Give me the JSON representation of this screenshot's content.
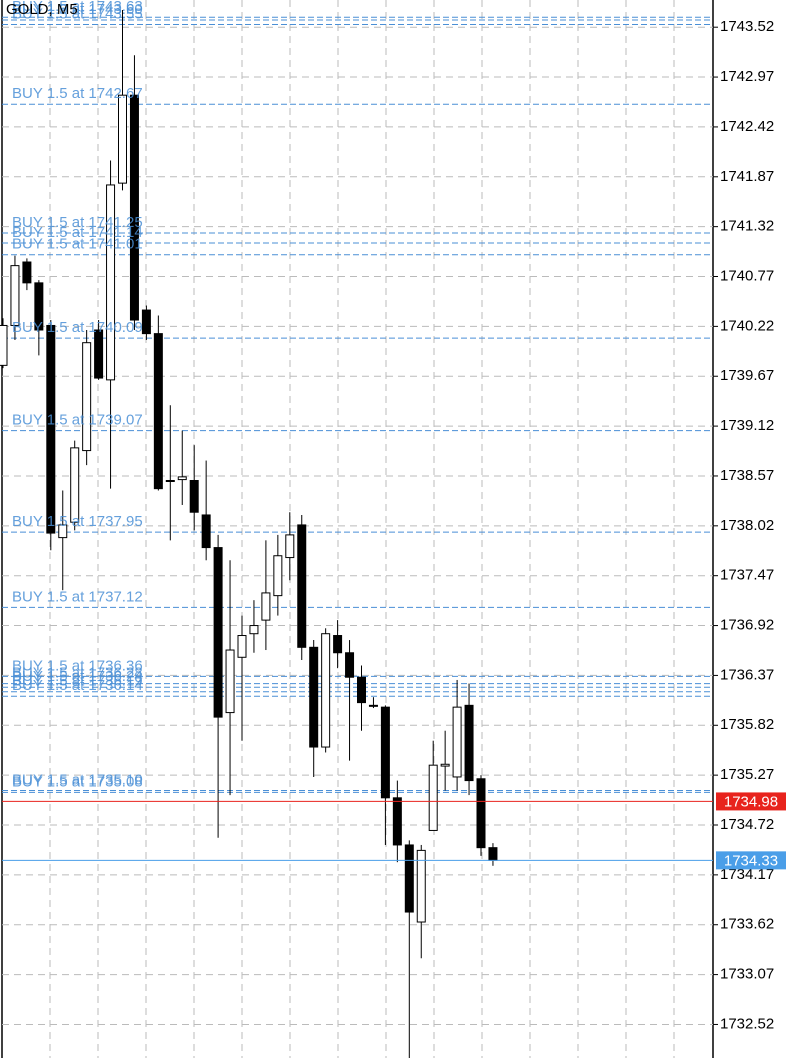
{
  "chart_data": {
    "type": "candlestick",
    "title": "GOLD, M5",
    "open": [
      1739.79,
      1740.23,
      1740.93,
      1740.7,
      1740.23,
      1737.89,
      1738.06,
      1738.85,
      1740.18,
      1739.63,
      1741.8,
      1742.77,
      1740.4,
      1740.14,
      1738.51,
      1738.53,
      1738.52,
      1738.14,
      1737.78,
      1735.96,
      1736.57,
      1736.83,
      1736.98,
      1737.25,
      1737.67,
      1738.03,
      1736.68,
      1735.58,
      1736.81,
      1736.62,
      1736.35,
      1736.04,
      1736.02,
      1735.02,
      1734.5,
      1733.65,
      1734.66,
      1735.37,
      1735.25,
      1736.04,
      1735.23,
      1734.47
    ],
    "high": [
      1740.31,
      1741.0,
      1740.97,
      1740.73,
      1740.29,
      1738.41,
      1738.96,
      1740.18,
      1740.29,
      1742.05,
      1743.71,
      1743.21,
      1740.45,
      1740.34,
      1739.35,
      1739.07,
      1738.91,
      1738.74,
      1737.92,
      1737.64,
      1737.03,
      1737.2,
      1737.86,
      1737.92,
      1738.17,
      1738.14,
      1736.76,
      1736.89,
      1736.98,
      1736.76,
      1736.48,
      1736.13,
      1736.04,
      1735.21,
      1734.55,
      1734.5,
      1735.65,
      1735.76,
      1736.32,
      1736.28,
      1735.27,
      1734.52
    ],
    "low": [
      1739.76,
      1740.07,
      1740.62,
      1739.9,
      1737.75,
      1737.31,
      1737.97,
      1738.69,
      1739.63,
      1738.43,
      1741.72,
      1740.18,
      1740.07,
      1738.41,
      1737.86,
      1738.25,
      1737.97,
      1737.64,
      1734.58,
      1735.05,
      1735.65,
      1736.62,
      1736.65,
      1737.03,
      1737.42,
      1736.54,
      1735.25,
      1735.52,
      1736.45,
      1735.43,
      1735.76,
      1736.01,
      1734.5,
      1734.31,
      1732.15,
      1733.25,
      1734.66,
      1735.1,
      1735.1,
      1735.05,
      1734.38,
      1734.27
    ],
    "close": [
      1740.23,
      1740.89,
      1740.7,
      1740.18,
      1737.94,
      1738.03,
      1738.88,
      1740.04,
      1739.65,
      1741.78,
      1742.77,
      1740.29,
      1740.14,
      1738.43,
      1738.52,
      1738.56,
      1738.17,
      1737.78,
      1735.91,
      1736.65,
      1736.81,
      1736.92,
      1737.28,
      1737.69,
      1737.92,
      1736.68,
      1735.58,
      1736.83,
      1736.62,
      1736.35,
      1736.07,
      1736.03,
      1735.02,
      1734.5,
      1733.76,
      1734.44,
      1735.38,
      1735.39,
      1736.02,
      1735.21,
      1734.47,
      1734.33
    ],
    "up_color": "#ffffff",
    "down_color": "#000000",
    "wick_color": "#000000",
    "ylim": [
      1732.15,
      1743.82
    ],
    "yticks": [
      1743.52,
      1742.97,
      1742.42,
      1741.87,
      1741.32,
      1740.77,
      1740.22,
      1739.67,
      1739.12,
      1738.57,
      1738.02,
      1737.47,
      1736.92,
      1736.37,
      1735.82,
      1735.27,
      1734.72,
      1734.17,
      1733.62,
      1733.07,
      1732.52
    ],
    "grid": true,
    "order_color": "#4a8fd6",
    "orders": [
      {
        "label": "BUY 1.5 at 1743.63",
        "value": 1743.63
      },
      {
        "label": "BUY 1.5 at 1743.60",
        "value": 1743.6
      },
      {
        "label": "BUY 1.5 at 1743.55",
        "value": 1743.55
      },
      {
        "label": "BUY 1.5 at 1742.67",
        "value": 1742.67
      },
      {
        "label": "BUY 1.5 at 1741.25",
        "value": 1741.25
      },
      {
        "label": "BUY 1.5 at 1741.14",
        "value": 1741.14
      },
      {
        "label": "BUY 1.5 at 1741.01",
        "value": 1741.01
      },
      {
        "label": "BUY 1.5 at 1740.09",
        "value": 1740.09
      },
      {
        "label": "BUY 1.5 at 1739.07",
        "value": 1739.07
      },
      {
        "label": "BUY 1.5 at 1737.95",
        "value": 1737.95
      },
      {
        "label": "BUY 1.5 at 1737.12",
        "value": 1737.12
      },
      {
        "label": "BUY 1.5 at 1736.36",
        "value": 1736.36
      },
      {
        "label": "BUY 1.5 at 1736.28",
        "value": 1736.28
      },
      {
        "label": "BUY 1.5 at 1736.24",
        "value": 1736.24
      },
      {
        "label": "BUY 1.5 at 1736.19",
        "value": 1736.19
      },
      {
        "label": "BUY 1.5 at 1736.14",
        "value": 1736.14
      },
      {
        "label": "BUY 1.5 at 1735.10",
        "value": 1735.1
      },
      {
        "label": "BUY 1.5 at 1735.08",
        "value": 1735.08
      }
    ],
    "ask": {
      "value": 1734.98,
      "color": "#e8231d"
    },
    "bid": {
      "value": 1734.33,
      "color": "#4a9ee8"
    }
  }
}
